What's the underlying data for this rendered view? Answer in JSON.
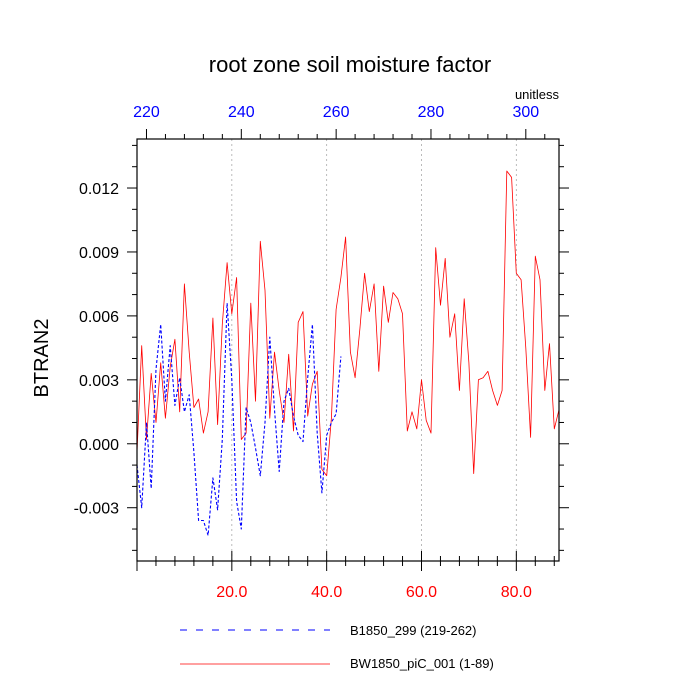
{
  "chart_data": {
    "type": "line",
    "title": "root zone soil moisture factor",
    "ylabel": "BTRAN2",
    "units_label": "unitless",
    "xlim_bottom": [
      0,
      89
    ],
    "xlim_top": [
      218,
      307
    ],
    "ylim": [
      -0.0055,
      0.0143
    ],
    "bottom_ticks": [
      20,
      40,
      60,
      80
    ],
    "bottom_tick_labels": [
      "20.0",
      "40.0",
      "60.0",
      "80.0"
    ],
    "top_ticks": [
      220,
      240,
      260,
      280,
      300
    ],
    "top_tick_labels": [
      "220",
      "240",
      "260",
      "280",
      "300"
    ],
    "y_ticks": [
      -0.003,
      0.0,
      0.003,
      0.006,
      0.009,
      0.012
    ],
    "y_tick_labels": [
      "-0.003",
      "0.000",
      "0.003",
      "0.006",
      "0.009",
      "0.012"
    ],
    "bottom_axis_color": "#ff0000",
    "top_axis_color": "#0000ff",
    "series": [
      {
        "name": "BW1850_piC_001 (1-89)",
        "color": "#ff0000",
        "style": "solid",
        "x": [
          0,
          1,
          2,
          3,
          4,
          5,
          6,
          7,
          8,
          9,
          10,
          11,
          12,
          13,
          14,
          15,
          16,
          17,
          18,
          19,
          20,
          21,
          22,
          23,
          24,
          25,
          26,
          27,
          28,
          29,
          30,
          31,
          32,
          33,
          34,
          35,
          36,
          37,
          38,
          39,
          40,
          41,
          42,
          43,
          44,
          45,
          46,
          47,
          48,
          49,
          50,
          51,
          52,
          53,
          54,
          55,
          56,
          57,
          58,
          59,
          60,
          61,
          62,
          63,
          64,
          65,
          66,
          67,
          68,
          69,
          70,
          71,
          72,
          73,
          74,
          75,
          76,
          77,
          78,
          79,
          80,
          81,
          82,
          83,
          84,
          85,
          86,
          87,
          88,
          89
        ],
        "values": [
          -0.0004,
          0.0046,
          0.0002,
          0.0033,
          0.001,
          0.0038,
          0.0012,
          0.0036,
          0.0049,
          0.0015,
          0.0075,
          0.0043,
          0.0017,
          0.0021,
          0.0005,
          0.0015,
          0.0059,
          0.0009,
          0.0056,
          0.0085,
          0.0061,
          0.0078,
          0.0002,
          0.0005,
          0.0066,
          0.002,
          0.0095,
          0.0072,
          0.0012,
          0.0043,
          0.0025,
          0.001,
          0.0042,
          0.0006,
          0.0057,
          0.0062,
          0.0013,
          0.0028,
          0.0034,
          -0.0012,
          -0.0015,
          0.0012,
          0.0063,
          0.0078,
          0.0097,
          0.0043,
          0.0031,
          0.0054,
          0.008,
          0.0062,
          0.0075,
          0.0034,
          0.0074,
          0.0057,
          0.0071,
          0.0068,
          0.0061,
          0.0006,
          0.0015,
          0.0007,
          0.003,
          0.0011,
          0.0005,
          0.0092,
          0.0065,
          0.0087,
          0.005,
          0.0061,
          0.0025,
          0.0068,
          0.0038,
          -0.0014,
          0.003,
          0.0031,
          0.0034,
          0.0025,
          0.0018,
          0.0025,
          0.0128,
          0.0125,
          0.008,
          0.0077,
          0.0045,
          0.0003,
          0.0088,
          0.0077,
          0.0025,
          0.0047,
          0.0007,
          0.0016
        ]
      },
      {
        "name": "B1850_299 (219-262)",
        "color": "#0000ff",
        "style": "dashed",
        "x": [
          0,
          1,
          2,
          3,
          4,
          5,
          6,
          7,
          8,
          9,
          10,
          11,
          12,
          13,
          14,
          15,
          16,
          17,
          18,
          19,
          20,
          21,
          22,
          23,
          24,
          25,
          26,
          27,
          28,
          29,
          30,
          31,
          32,
          33,
          34,
          35,
          36,
          37,
          38,
          39,
          40,
          41,
          42,
          43
        ],
        "values": [
          -0.001,
          -0.003,
          0.001,
          -0.0021,
          0.0035,
          0.0056,
          0.002,
          0.0046,
          0.0018,
          0.0031,
          0.0015,
          0.0023,
          -0.0004,
          -0.0036,
          -0.0036,
          -0.0043,
          -0.0016,
          -0.0031,
          0.0002,
          0.0066,
          0.003,
          -0.0027,
          -0.004,
          0.0017,
          0.001,
          -0.0002,
          -0.0015,
          0.001,
          0.005,
          0.0016,
          -0.0013,
          0.002,
          0.0026,
          0.0013,
          0.0004,
          0.0001,
          0.0031,
          0.0056,
          0.0005,
          -0.0023,
          0.0004,
          0.001,
          0.0014,
          0.0041
        ]
      }
    ],
    "legend": [
      {
        "label": "B1850_299 (219-262)",
        "color": "#0000ff",
        "style": "dashed"
      },
      {
        "label": "BW1850_piC_001 (1-89)",
        "color": "#ff0000",
        "style": "solid"
      }
    ]
  }
}
